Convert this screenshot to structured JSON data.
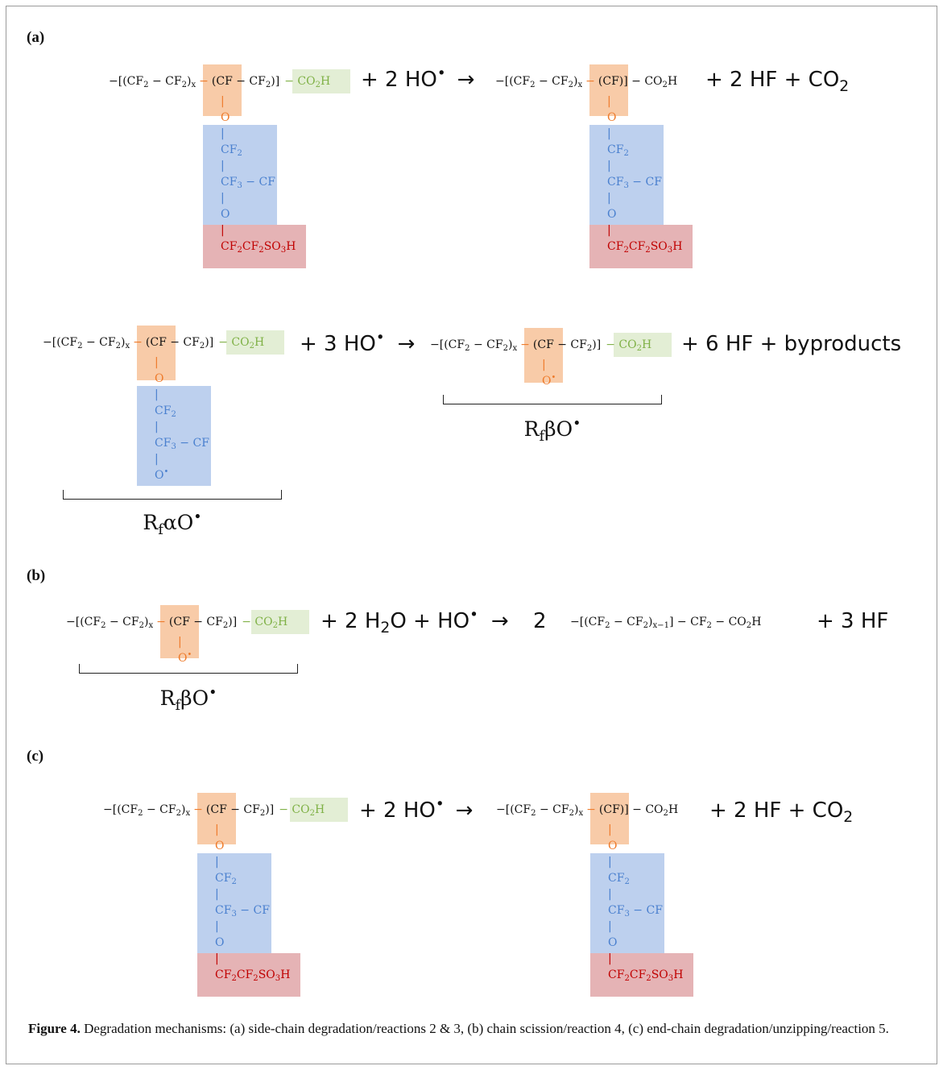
{
  "panels": {
    "a": "(a)",
    "b": "(b)",
    "c": "(c)"
  },
  "reaction1": {
    "backbone": "−[(CF",
    "sub2": "2",
    "minus": " − CF",
    "close": ")",
    "x": "x",
    "dash": "−",
    "cf_open": "(CF",
    "cf_close": " − CF",
    "bracket": ")]",
    "co2h_prefix": "− CO",
    "h": "H",
    "reagent": "+ 2 HO",
    "arrow": "→",
    "product_cf": "(CF)",
    "product_tail": "] − CO",
    "products": "+ 2 HF  + CO",
    "o": "O",
    "vline": "|",
    "cf2": "CF",
    "cf3cf_a": "CF",
    "cf3cf_b": "3",
    "cf3cf_c": " − CF",
    "sulfonic_a": "CF",
    "sulfonic_b": "CF",
    "sulfonic_c": "SO",
    "sulfonic_d": "H"
  },
  "reaction2": {
    "reagent": "+ 3 HO",
    "arrow": "→",
    "products": "+   6 HF  + byproducts",
    "radical_o": "O",
    "label_alpha_a": "R",
    "label_alpha_f": "f",
    "label_alpha_b": "αO",
    "label_beta_a": "R",
    "label_beta_f": "f",
    "label_beta_b": "βO",
    "dot": "•"
  },
  "reaction3": {
    "reagent": "+ 2 H",
    "reagent_2": "2",
    "reagent_b": "O +  HO",
    "arrow": "→",
    "coef": "2",
    "product": "−[(CF",
    "product_b": " − CF",
    "product_c": ")",
    "product_x": "x−1",
    "product_d": "] − CF",
    "product_e": " − CO",
    "product_f": "H",
    "products": "+   3 HF"
  },
  "caption": {
    "label": "Figure 4.",
    "text": " Degradation mechanisms: (a) side-chain degradation/reactions 2 & 3, (b) chain scission/reaction 4, (c) end-chain degradation/unzipping/reaction 5."
  }
}
